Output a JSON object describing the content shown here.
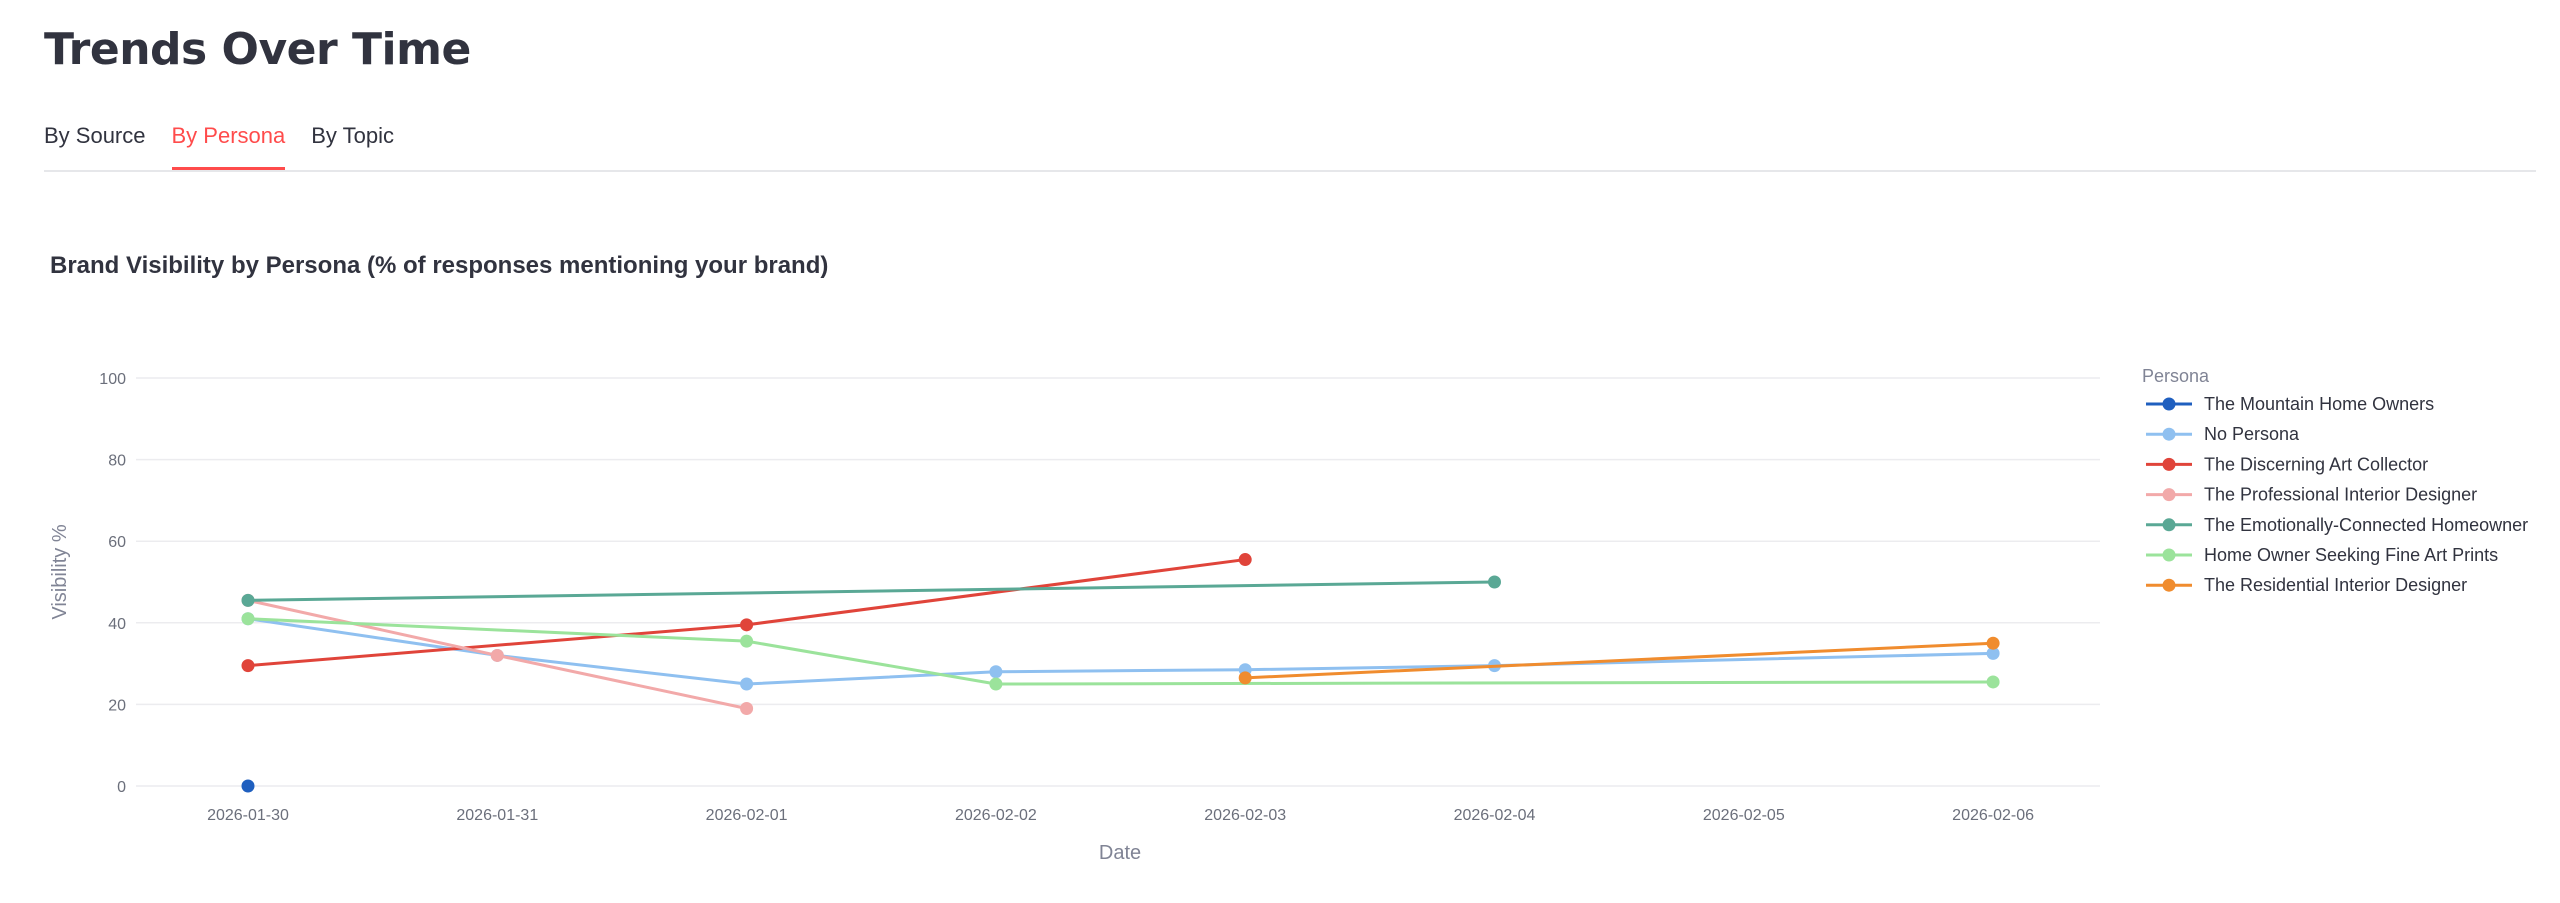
{
  "page": {
    "title": "Trends Over Time",
    "tabs": [
      {
        "label": "By Source",
        "active": false
      },
      {
        "label": "By Persona",
        "active": true
      },
      {
        "label": "By Topic",
        "active": false
      }
    ],
    "accent_color": "#ff4b4b"
  },
  "chart_data": {
    "type": "line",
    "title": "Brand Visibility by Persona (% of responses mentioning your brand)",
    "xlabel": "Date",
    "ylabel": "Visibility %",
    "ylim": [
      0,
      100
    ],
    "y_ticks": [
      0,
      20,
      40,
      60,
      80,
      100
    ],
    "x_ticks": [
      "2026-01-30",
      "2026-01-31",
      "2026-02-01",
      "2026-02-02",
      "2026-02-03",
      "2026-02-04",
      "2026-02-05",
      "2026-02-06"
    ],
    "grid": true,
    "legend_title": "Persona",
    "legend_position": "right",
    "series": [
      {
        "name": "The Mountain Home Owners",
        "color": "#1f5fbf",
        "points": [
          [
            "2026-01-30",
            0
          ]
        ]
      },
      {
        "name": "No Persona",
        "color": "#8fc0f0",
        "points": [
          [
            "2026-01-30",
            41
          ],
          [
            "2026-01-31",
            32
          ],
          [
            "2026-02-01",
            25
          ],
          [
            "2026-02-02",
            28
          ],
          [
            "2026-02-03",
            28.5
          ],
          [
            "2026-02-04",
            29.5
          ],
          [
            "2026-02-06",
            32.5
          ]
        ]
      },
      {
        "name": "The Discerning Art Collector",
        "color": "#e0443a",
        "points": [
          [
            "2026-01-30",
            29.5
          ],
          [
            "2026-02-01",
            39.5
          ],
          [
            "2026-02-03",
            55.5
          ]
        ]
      },
      {
        "name": "The Professional Interior Designer",
        "color": "#f2a9a9",
        "points": [
          [
            "2026-01-30",
            45.5
          ],
          [
            "2026-01-31",
            32
          ],
          [
            "2026-02-01",
            19
          ]
        ]
      },
      {
        "name": "The Emotionally-Connected Homeowner",
        "color": "#5aa895",
        "points": [
          [
            "2026-01-30",
            45.5
          ],
          [
            "2026-02-04",
            50
          ]
        ]
      },
      {
        "name": "Home Owner Seeking Fine Art Prints",
        "color": "#9be39b",
        "points": [
          [
            "2026-01-30",
            41
          ],
          [
            "2026-02-01",
            35.5
          ],
          [
            "2026-02-02",
            25
          ],
          [
            "2026-02-06",
            25.5
          ]
        ]
      },
      {
        "name": "The Residential Interior Designer",
        "color": "#f08c2e",
        "points": [
          [
            "2026-02-03",
            26.5
          ],
          [
            "2026-02-06",
            35
          ]
        ]
      }
    ]
  }
}
